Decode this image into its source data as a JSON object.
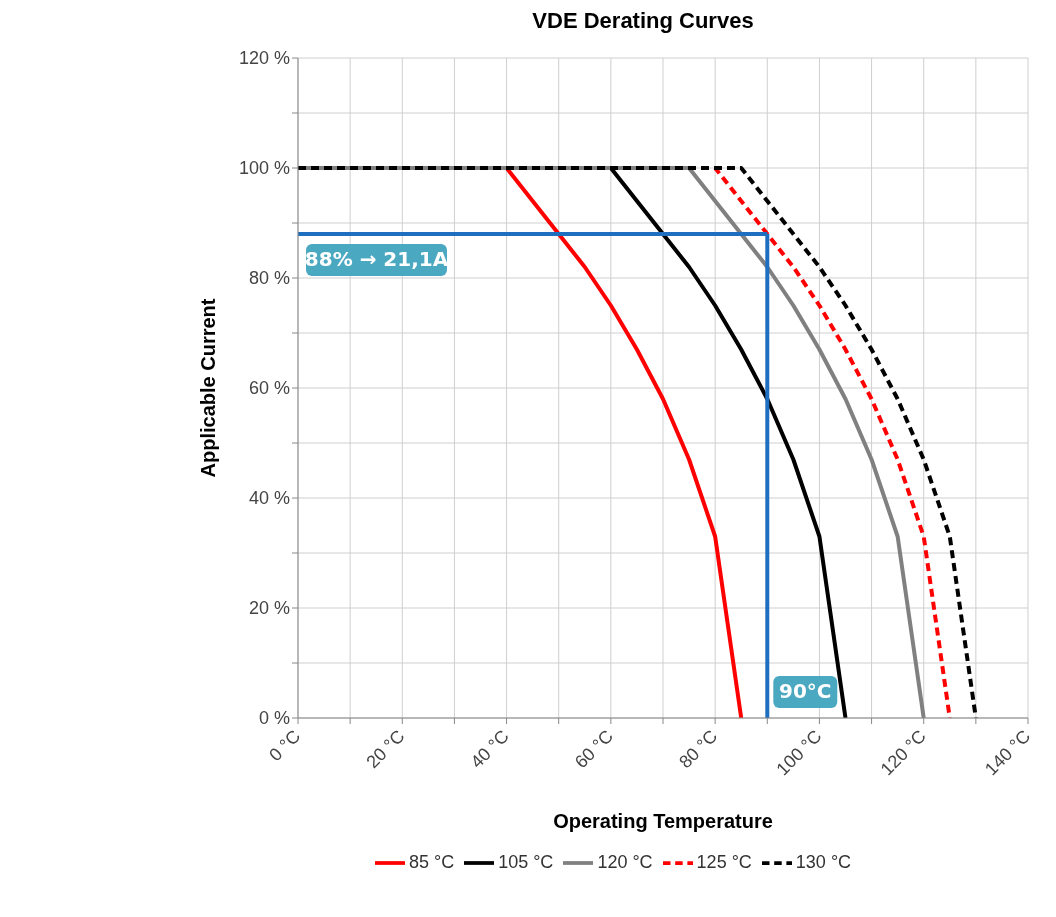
{
  "chart_data": {
    "type": "line",
    "title": "VDE Derating Curves",
    "xlabel": "Operating Temperature",
    "ylabel": "Applicable Current",
    "xlim": [
      0,
      140
    ],
    "ylim": [
      0,
      120
    ],
    "xticks": [
      {
        "value": 0,
        "label": "0 °C"
      },
      {
        "value": 10,
        "label": null
      },
      {
        "value": 20,
        "label": "20 °C"
      },
      {
        "value": 30,
        "label": null
      },
      {
        "value": 40,
        "label": "40 °C"
      },
      {
        "value": 50,
        "label": null
      },
      {
        "value": 60,
        "label": "60 °C"
      },
      {
        "value": 70,
        "label": null
      },
      {
        "value": 80,
        "label": "80 °C"
      },
      {
        "value": 90,
        "label": null
      },
      {
        "value": 100,
        "label": "100 °C"
      },
      {
        "value": 110,
        "label": null
      },
      {
        "value": 120,
        "label": "120 °C"
      },
      {
        "value": 130,
        "label": null
      },
      {
        "value": 140,
        "label": "140 °C"
      }
    ],
    "yticks": [
      {
        "value": 0,
        "label": "0 %"
      },
      {
        "value": 10,
        "label": null
      },
      {
        "value": 20,
        "label": "20 %"
      },
      {
        "value": 30,
        "label": null
      },
      {
        "value": 40,
        "label": "40 %"
      },
      {
        "value": 50,
        "label": null
      },
      {
        "value": 60,
        "label": "60 %"
      },
      {
        "value": 70,
        "label": null
      },
      {
        "value": 80,
        "label": "80 %"
      },
      {
        "value": 90,
        "label": null
      },
      {
        "value": 100,
        "label": "100 %"
      },
      {
        "value": 110,
        "label": null
      },
      {
        "value": 120,
        "label": "120 %"
      }
    ],
    "grid": true,
    "legend": "bottom",
    "marker": "none",
    "series": [
      {
        "name": "85 °C",
        "color": "#ff0000",
        "line_style": "solid",
        "x": [
          0,
          40,
          45,
          50,
          55,
          60,
          65,
          70,
          75,
          80,
          85
        ],
        "values": [
          100,
          100,
          94,
          88,
          82,
          75,
          67,
          58,
          47,
          33,
          0
        ]
      },
      {
        "name": "105 °C",
        "color": "#000000",
        "line_style": "solid",
        "x": [
          0,
          60,
          65,
          70,
          75,
          80,
          85,
          90,
          95,
          100,
          105
        ],
        "values": [
          100,
          100,
          94,
          88,
          82,
          75,
          67,
          58,
          47,
          33,
          0
        ]
      },
      {
        "name": "120 °C",
        "color": "#808080",
        "line_style": "solid",
        "x": [
          0,
          75,
          80,
          85,
          90,
          95,
          100,
          105,
          110,
          115,
          120
        ],
        "values": [
          100,
          100,
          94,
          88,
          82,
          75,
          67,
          58,
          47,
          33,
          0
        ]
      },
      {
        "name": "125 °C",
        "color": "#ff0000",
        "line_style": "dashed",
        "x": [
          0,
          80,
          85,
          90,
          95,
          100,
          105,
          110,
          115,
          120,
          125
        ],
        "values": [
          100,
          100,
          94,
          88,
          82,
          75,
          67,
          58,
          47,
          33,
          0
        ]
      },
      {
        "name": "130 °C",
        "color": "#000000",
        "line_style": "dashed",
        "x": [
          0,
          85,
          90,
          95,
          100,
          105,
          110,
          115,
          120,
          125,
          130
        ],
        "values": [
          100,
          100,
          94,
          88,
          82,
          75,
          67,
          58,
          47,
          33,
          0
        ]
      }
    ],
    "ref_lines": [
      {
        "axis": "y",
        "value": 88,
        "label": "88% → 21,1A",
        "color": "#1f6fc0",
        "line_style": "solid"
      },
      {
        "axis": "x",
        "value": 90,
        "label": "90°C",
        "color": "#1f6fc0",
        "line_style": "solid"
      }
    ]
  }
}
